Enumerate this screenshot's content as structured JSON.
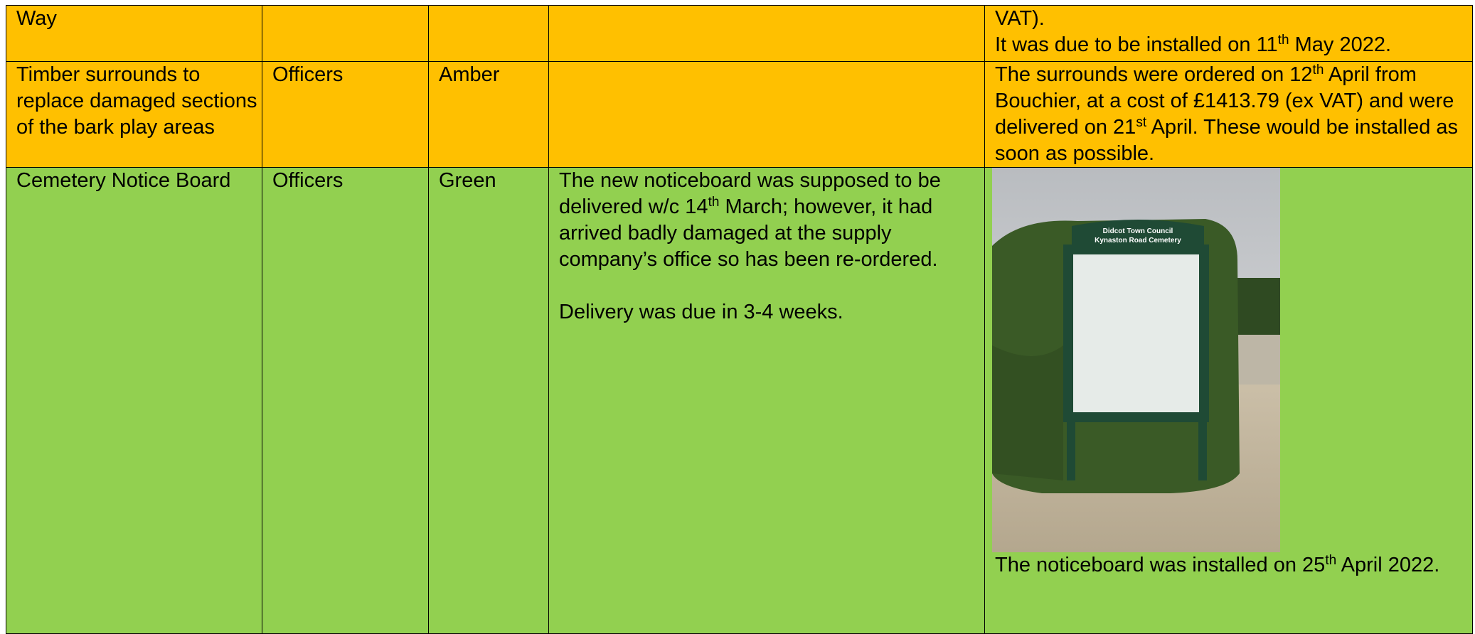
{
  "table": {
    "rows": [
      {
        "item": [
          [
            "Way"
          ]
        ],
        "outcome": [
          [
            "VAT)."
          ],
          [
            "It was due to be installed on 11",
            {
              "sup": "th"
            },
            " May 2022."
          ]
        ]
      },
      {
        "item": [
          [
            "Timber surrounds to replace damaged sections of the bark play areas"
          ]
        ],
        "responsible": [
          [
            "Officers"
          ]
        ],
        "status": [
          [
            "Amber"
          ]
        ],
        "outcome": [
          [
            "The surrounds were ordered on 12",
            {
              "sup": "th"
            },
            " April from Bouchier, at a cost of £1413.79 (ex VAT) and were delivered on 21",
            {
              "sup": "st"
            },
            " April. These would be installed as soon as possible."
          ]
        ]
      },
      {
        "item": [
          [
            "Cemetery Notice Board"
          ]
        ],
        "responsible": [
          [
            "Officers"
          ]
        ],
        "status": [
          [
            "Green"
          ]
        ],
        "update": [
          [
            "The new noticeboard was supposed to be delivered w/c 14",
            {
              "sup": "th"
            },
            " March; however, it had arrived badly damaged at the supply company’s office so has been re-ordered."
          ],
          [
            "Delivery was due in 3-4 weeks."
          ]
        ],
        "photo_sign": [
          "Didcot Town Council",
          "Kynaston Road Cemetery"
        ],
        "outcome": [
          [
            "The noticeboard was installed on 25",
            {
              "sup": "th"
            },
            " April 2022."
          ]
        ]
      }
    ]
  }
}
